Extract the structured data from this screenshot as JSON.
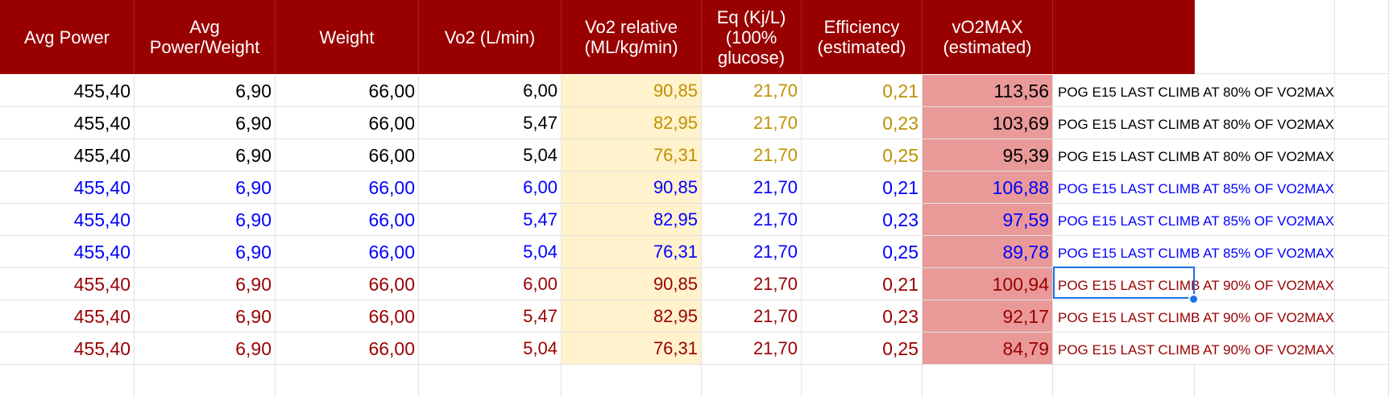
{
  "headers": [
    "Avg Power",
    "Avg\nPower/Weight",
    "Weight",
    "Vo2 (L/min)",
    "Vo2 relative\n(ML/kg/min)",
    "Eq (Kj/L)\n(100%\nglucose)",
    "Efficiency\n(estimated)",
    "vO2MAX\n(estimated)"
  ],
  "colors": {
    "header_bg": "#990000",
    "header_text": "#ffffff",
    "vo2_relative_fill": "#fff2cc",
    "vo2max_fill": "#ea9999",
    "gold_text": "#bf9000",
    "black_text": "#000000",
    "blue_text": "#0000ff",
    "dark_red_text": "#990000",
    "selection": "#1a73e8"
  },
  "rows": [
    {
      "cells": [
        "455,40",
        "6,90",
        "66,00",
        "6,00",
        "90,85",
        "21,70",
        "0,21",
        "113,56"
      ],
      "note": "POG E15 LAST CLIMB AT 80% OF VO2MAX",
      "tone": "black"
    },
    {
      "cells": [
        "455,40",
        "6,90",
        "66,00",
        "5,47",
        "82,95",
        "21,70",
        "0,23",
        "103,69"
      ],
      "note": "POG E15 LAST CLIMB AT 80% OF VO2MAX",
      "tone": "black"
    },
    {
      "cells": [
        "455,40",
        "6,90",
        "66,00",
        "5,04",
        "76,31",
        "21,70",
        "0,25",
        "95,39"
      ],
      "note": "POG E15 LAST CLIMB AT 80% OF VO2MAX",
      "tone": "black"
    },
    {
      "cells": [
        "455,40",
        "6,90",
        "66,00",
        "6,00",
        "90,85",
        "21,70",
        "0,21",
        "106,88"
      ],
      "note": "POG E15 LAST CLIMB AT 85% OF VO2MAX",
      "tone": "blue"
    },
    {
      "cells": [
        "455,40",
        "6,90",
        "66,00",
        "5,47",
        "82,95",
        "21,70",
        "0,23",
        "97,59"
      ],
      "note": "POG E15 LAST CLIMB AT 85% OF VO2MAX",
      "tone": "blue"
    },
    {
      "cells": [
        "455,40",
        "6,90",
        "66,00",
        "5,04",
        "76,31",
        "21,70",
        "0,25",
        "89,78"
      ],
      "note": "POG E15 LAST CLIMB AT 85% OF VO2MAX",
      "tone": "blue"
    },
    {
      "cells": [
        "455,40",
        "6,90",
        "66,00",
        "6,00",
        "90,85",
        "21,70",
        "0,21",
        "100,94"
      ],
      "note": "POG E15 LAST CLIMB AT 90% OF VO2MAX",
      "tone": "red"
    },
    {
      "cells": [
        "455,40",
        "6,90",
        "66,00",
        "5,47",
        "82,95",
        "21,70",
        "0,23",
        "92,17"
      ],
      "note": "POG E15 LAST CLIMB AT 90% OF VO2MAX",
      "tone": "red"
    },
    {
      "cells": [
        "455,40",
        "6,90",
        "66,00",
        "5,04",
        "76,31",
        "21,70",
        "0,25",
        "84,79"
      ],
      "note": "POG E15 LAST CLIMB AT 90% OF VO2MAX",
      "tone": "red"
    }
  ],
  "selected_cell": {
    "row": 6,
    "column": "note"
  }
}
